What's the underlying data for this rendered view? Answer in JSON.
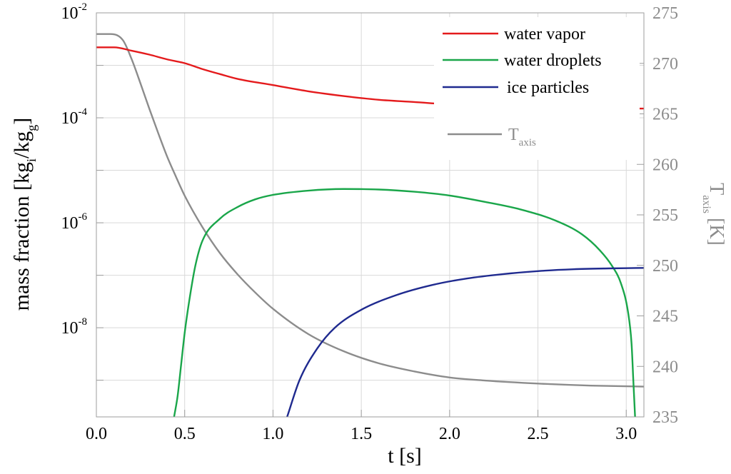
{
  "chart_data": {
    "type": "line",
    "xlabel": "t [s]",
    "xlim": [
      0,
      3.1
    ],
    "x_ticks": [
      {
        "value": 0.0,
        "label": "0.0"
      },
      {
        "value": 0.5,
        "label": "0.5"
      },
      {
        "value": 1.0,
        "label": "1.0"
      },
      {
        "value": 1.5,
        "label": "1.5"
      },
      {
        "value": 2.0,
        "label": "2.0"
      },
      {
        "value": 2.5,
        "label": "2.5"
      },
      {
        "value": 3.0,
        "label": "3.0"
      }
    ],
    "y_left": {
      "label_main": "mass fraction [kg",
      "label_sub_i": "i",
      "label_mid": "/kg",
      "label_sub_g": "g",
      "label_end": "]",
      "scale": "log",
      "lim": [
        2e-10,
        0.01
      ],
      "ticks": [
        {
          "value": 0.01,
          "base": "10",
          "exp": "-2"
        },
        {
          "value": 0.0001,
          "base": "10",
          "exp": "-4"
        },
        {
          "value": 1e-06,
          "base": "10",
          "exp": "-6"
        },
        {
          "value": 1e-08,
          "base": "10",
          "exp": "-8"
        }
      ]
    },
    "y_right": {
      "label_base": "T",
      "label_sub": "axis",
      "label_unit": "[K]",
      "lim": [
        235,
        275
      ],
      "ticks": [
        "235",
        "240",
        "245",
        "250",
        "255",
        "260",
        "265",
        "270",
        "275"
      ]
    },
    "grid": true,
    "legend_position": "top-right",
    "series": [
      {
        "name": "water vapor",
        "axis": "left",
        "color": "#e41a1c",
        "points": [
          [
            0,
            0.0022
          ],
          [
            0.1,
            0.0022
          ],
          [
            0.2,
            0.0019
          ],
          [
            0.3,
            0.0016
          ],
          [
            0.4,
            0.0013
          ],
          [
            0.5,
            0.0011
          ],
          [
            0.6,
            0.00085
          ],
          [
            0.7,
            0.00068
          ],
          [
            0.8,
            0.00055
          ],
          [
            1.0,
            0.00042
          ],
          [
            1.2,
            0.00032
          ],
          [
            1.4,
            0.00026
          ],
          [
            1.6,
            0.00022
          ],
          [
            1.8,
            0.0002
          ],
          [
            2.0,
            0.00018
          ],
          [
            2.2,
            0.00017
          ],
          [
            2.5,
            0.00016
          ],
          [
            2.8,
            0.00015
          ],
          [
            3.1,
            0.00015
          ]
        ]
      },
      {
        "name": "water droplets",
        "axis": "left",
        "color": "#1aa64a",
        "points": [
          [
            0.44,
            2e-10
          ],
          [
            0.46,
            5e-10
          ],
          [
            0.48,
            2e-09
          ],
          [
            0.5,
            8e-09
          ],
          [
            0.53,
            4e-08
          ],
          [
            0.56,
            1.5e-07
          ],
          [
            0.6,
            4.5e-07
          ],
          [
            0.7,
            1.2e-06
          ],
          [
            0.8,
            2e-06
          ],
          [
            0.9,
            2.8e-06
          ],
          [
            1.0,
            3.4e-06
          ],
          [
            1.2,
            4.1e-06
          ],
          [
            1.4,
            4.4e-06
          ],
          [
            1.6,
            4.3e-06
          ],
          [
            1.8,
            3.9e-06
          ],
          [
            2.0,
            3.3e-06
          ],
          [
            2.2,
            2.5e-06
          ],
          [
            2.4,
            1.8e-06
          ],
          [
            2.6,
            1.1e-06
          ],
          [
            2.75,
            6e-07
          ],
          [
            2.85,
            3e-07
          ],
          [
            2.92,
            1.5e-07
          ],
          [
            2.97,
            7e-08
          ],
          [
            3.01,
            2e-08
          ],
          [
            3.03,
            5e-09
          ],
          [
            3.04,
            1e-09
          ],
          [
            3.05,
            2e-10
          ]
        ]
      },
      {
        "name": "ice particles",
        "axis": "left",
        "color": "#1f2a8f",
        "points": [
          [
            1.08,
            2e-10
          ],
          [
            1.15,
            1e-09
          ],
          [
            1.25,
            4e-09
          ],
          [
            1.35,
            1e-08
          ],
          [
            1.5,
            2.2e-08
          ],
          [
            1.7,
            4.2e-08
          ],
          [
            1.9,
            6.5e-08
          ],
          [
            2.1,
            8.7e-08
          ],
          [
            2.3,
            1.05e-07
          ],
          [
            2.5,
            1.2e-07
          ],
          [
            2.7,
            1.3e-07
          ],
          [
            2.9,
            1.35e-07
          ],
          [
            3.1,
            1.38e-07
          ]
        ]
      },
      {
        "name": "T",
        "name_sub": "axis",
        "axis": "right",
        "color": "#8c8c8c",
        "points": [
          [
            0,
            272.9
          ],
          [
            0.08,
            272.9
          ],
          [
            0.15,
            272.3
          ],
          [
            0.2,
            270.4
          ],
          [
            0.25,
            268
          ],
          [
            0.3,
            265.5
          ],
          [
            0.35,
            263.1
          ],
          [
            0.4,
            260.8
          ],
          [
            0.45,
            258.8
          ],
          [
            0.5,
            256.9
          ],
          [
            0.6,
            253.8
          ],
          [
            0.7,
            251.2
          ],
          [
            0.8,
            249.1
          ],
          [
            0.9,
            247.3
          ],
          [
            1.0,
            245.7
          ],
          [
            1.2,
            243.2
          ],
          [
            1.4,
            241.5
          ],
          [
            1.6,
            240.3
          ],
          [
            1.8,
            239.5
          ],
          [
            2.0,
            238.9
          ],
          [
            2.2,
            238.6
          ],
          [
            2.5,
            238.3
          ],
          [
            2.8,
            238.1
          ],
          [
            3.1,
            238
          ]
        ]
      }
    ]
  }
}
